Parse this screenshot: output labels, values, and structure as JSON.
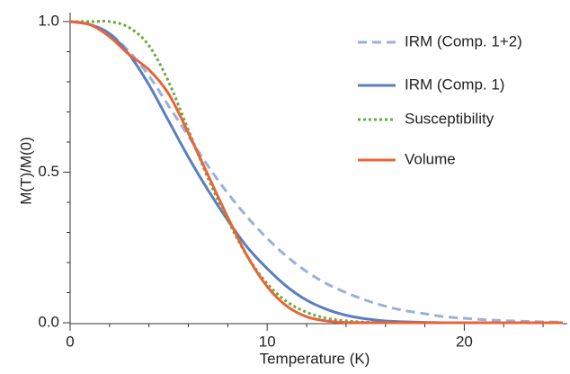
{
  "chart_data": {
    "type": "line",
    "x": [
      0,
      1,
      2,
      3,
      4,
      5,
      6,
      7,
      8,
      9,
      10,
      11,
      12,
      13,
      14,
      15,
      16,
      17,
      18,
      19,
      20,
      21,
      22,
      23,
      24,
      25
    ],
    "series": [
      {
        "name": "IRM (Comp. 1+2)",
        "color": "#9bb0d8",
        "style": "dashed",
        "values": [
          1.0,
          0.99,
          0.96,
          0.9,
          0.82,
          0.72,
          0.62,
          0.52,
          0.43,
          0.35,
          0.28,
          0.22,
          0.17,
          0.13,
          0.1,
          0.075,
          0.055,
          0.04,
          0.03,
          0.02,
          0.015,
          0.01,
          0.007,
          0.005,
          0.003,
          0.002
        ]
      },
      {
        "name": "IRM (Comp. 1)",
        "color": "#5a7ebf",
        "style": "solid",
        "values": [
          1.0,
          0.99,
          0.96,
          0.89,
          0.79,
          0.67,
          0.55,
          0.44,
          0.34,
          0.25,
          0.18,
          0.12,
          0.075,
          0.045,
          0.025,
          0.013,
          0.006,
          0.003,
          0.001,
          0,
          0,
          0,
          0,
          0,
          0,
          0
        ]
      },
      {
        "name": "Susceptibility",
        "color": "#6aab3c",
        "style": "dotted",
        "values": [
          1.0,
          1.0,
          1.0,
          0.98,
          0.92,
          0.8,
          0.64,
          0.48,
          0.34,
          0.22,
          0.13,
          0.07,
          0.035,
          0.015,
          0.006,
          0.002,
          0,
          0,
          0,
          0,
          0,
          0,
          0,
          0,
          0,
          0
        ]
      },
      {
        "name": "Volume",
        "color": "#e8643a",
        "style": "solid",
        "values": [
          1.0,
          0.99,
          0.95,
          0.89,
          0.84,
          0.76,
          0.63,
          0.49,
          0.35,
          0.22,
          0.12,
          0.055,
          0.02,
          0.006,
          0.001,
          0,
          0,
          0,
          0,
          0,
          0,
          0,
          0,
          0,
          0,
          0
        ]
      }
    ],
    "x_label": "Temperature (K)",
    "y_label": "M(T)/M(0)",
    "xlim": [
      0,
      25
    ],
    "ylim": [
      0,
      1
    ],
    "xticks": [
      0,
      10,
      20
    ],
    "yticks": [
      {
        "value": 0,
        "label": "0.0"
      },
      {
        "value": 0.5,
        "label": "0.5"
      },
      {
        "value": 1,
        "label": "1.0"
      }
    ],
    "xminorticks": [
      2,
      4,
      6,
      8,
      12,
      14,
      16,
      18,
      22,
      24
    ],
    "yminorticks": [
      0.1,
      0.2,
      0.3,
      0.4,
      0.6,
      0.7,
      0.8,
      0.9
    ],
    "legend": "upper right"
  }
}
